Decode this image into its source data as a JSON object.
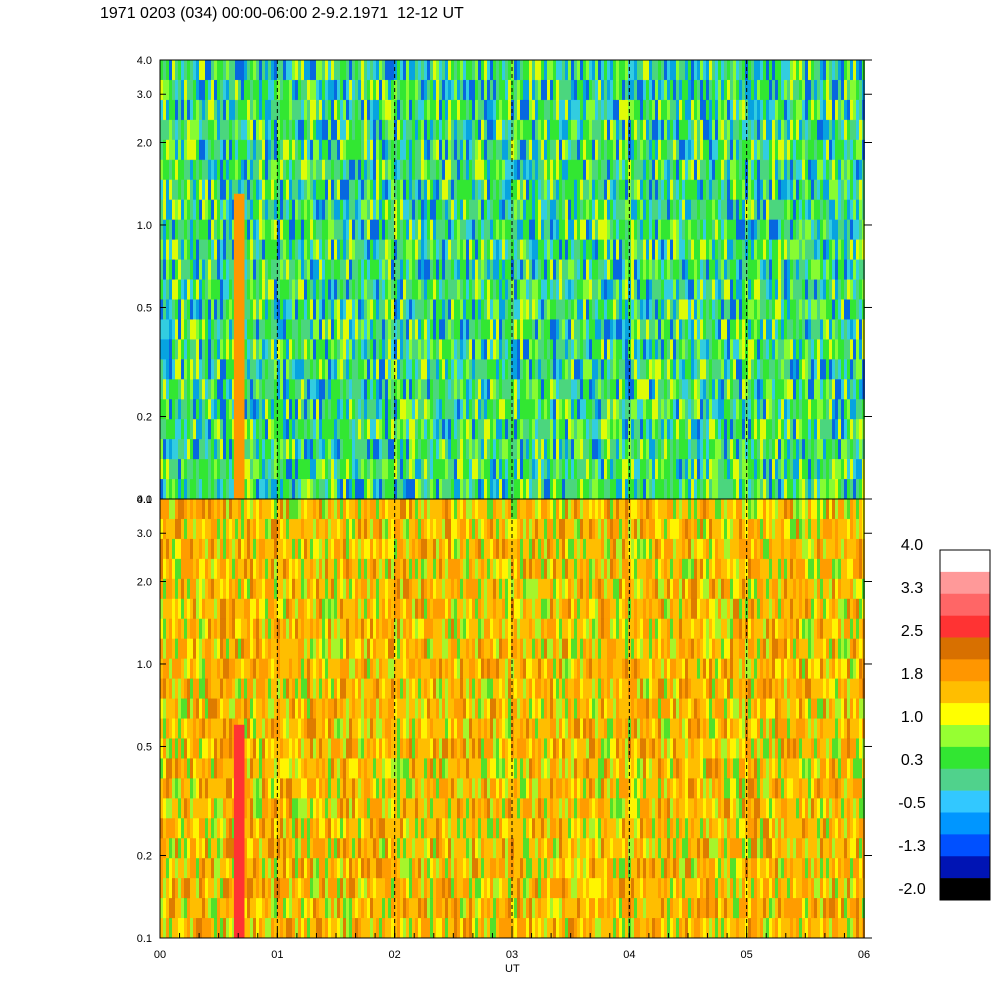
{
  "title": "1971 0203 (034) 00:00-06:00 2-9.2.1971  12-12 UT",
  "chart_data": [
    {
      "type": "heatmap",
      "panel": "top",
      "y_scale": "log",
      "ylim": [
        0.1,
        4.0
      ],
      "xlim": [
        0,
        6
      ],
      "y_tick_labels": [
        "0.1",
        "0.2",
        "0.5",
        "1.0",
        "2.0",
        "3.0",
        "4.0"
      ],
      "y_tick_values": [
        0.1,
        0.2,
        0.5,
        1.0,
        2.0,
        3.0,
        4.0
      ],
      "dominant_levels": [
        "green",
        "cyan",
        "blue"
      ],
      "features": [
        {
          "x_start": 0.63,
          "x_end": 0.72,
          "color": "orange",
          "y_max": 1.3
        }
      ],
      "dashed_hour_lines": [
        1,
        2,
        3,
        4,
        5
      ]
    },
    {
      "type": "heatmap",
      "panel": "bottom",
      "y_scale": "log",
      "ylim": [
        0.1,
        4.0
      ],
      "xlim": [
        0,
        6
      ],
      "y_tick_labels": [
        "0.1",
        "0.2",
        "0.5",
        "1.0",
        "2.0",
        "3.0",
        "4.0"
      ],
      "y_tick_values": [
        0.1,
        0.2,
        0.5,
        1.0,
        2.0,
        3.0,
        4.0
      ],
      "dominant_levels": [
        "yellow",
        "orange",
        "green"
      ],
      "features": [
        {
          "x_start": 0.63,
          "x_end": 0.72,
          "color": "red",
          "y_max": 0.6
        }
      ],
      "dashed_hour_lines": [
        1,
        2,
        3,
        4,
        5
      ]
    }
  ],
  "x_axis": {
    "label": "UT",
    "tick_labels": [
      "00",
      "01",
      "02",
      "03",
      "04",
      "05",
      "06"
    ],
    "tick_values": [
      0,
      1,
      2,
      3,
      4,
      5,
      6
    ]
  },
  "colorbar": {
    "labels": [
      "4.0",
      "3.3",
      "2.5",
      "1.8",
      "1.0",
      "0.3",
      "-0.5",
      "-1.3",
      "-2.0"
    ],
    "colors_top_to_bottom": [
      "#ffffff",
      "#ff9999",
      "#ff6666",
      "#ff3333",
      "#d87000",
      "#ff9600",
      "#ffbe00",
      "#ffff00",
      "#96ff32",
      "#32e632",
      "#50d28c",
      "#32c8ff",
      "#0096ff",
      "#0050ff",
      "#0014b4",
      "#000000"
    ]
  }
}
